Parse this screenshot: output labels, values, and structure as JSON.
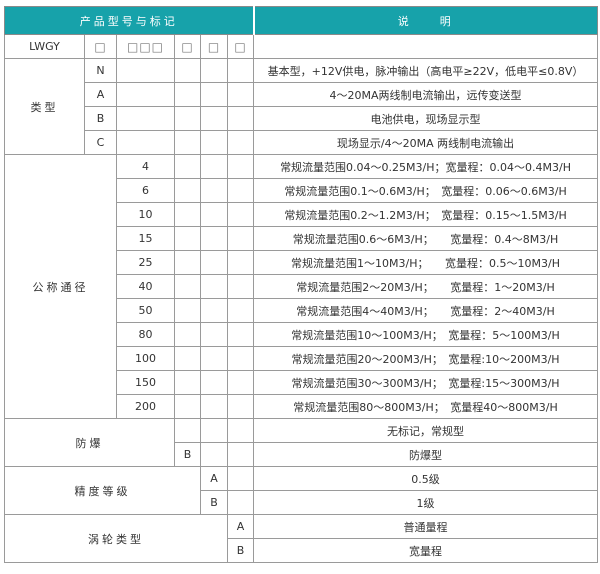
{
  "header": {
    "left": "产品型号与标记",
    "right": "说　　明"
  },
  "model_row": {
    "code": "LWGY",
    "slots": [
      "□",
      "□□□",
      "□",
      "□",
      "□"
    ]
  },
  "type": {
    "label": "类型",
    "items": [
      {
        "code": "N",
        "desc": "基本型，+12V供电，脉冲输出（高电平≥22V，低电平≤0.8V）"
      },
      {
        "code": "A",
        "desc": "4～20MA两线制电流输出，远传变送型"
      },
      {
        "code": "B",
        "desc": "电池供电，现场显示型"
      },
      {
        "code": "C",
        "desc": "现场显示/4～20MA 两线制电流输出"
      }
    ]
  },
  "diameter": {
    "label": "公称通径",
    "items": [
      {
        "code": "4",
        "desc": "常规流量范围0.04～0.25M3/H；宽量程：0.04～0.4M3/H"
      },
      {
        "code": "6",
        "desc": "常规流量范围0.1～0.6M3/H；　宽量程：0.06～0.6M3/H"
      },
      {
        "code": "10",
        "desc": "常规流量范围0.2～1.2M3/H；　宽量程：0.15～1.5M3/H"
      },
      {
        "code": "15",
        "desc": "常规流量范围0.6～6M3/H；　　宽量程：0.4～8M3/H"
      },
      {
        "code": "25",
        "desc": "常规流量范围1～10M3/H；　　宽量程：0.5～10M3/H"
      },
      {
        "code": "40",
        "desc": "常规流量范围2～20M3/H；　　宽量程：1～20M3/H"
      },
      {
        "code": "50",
        "desc": "常规流量范围4～40M3/H；　　宽量程：2～40M3/H"
      },
      {
        "code": "80",
        "desc": "常规流量范围10～100M3/H；　宽量程：5～100M3/H"
      },
      {
        "code": "100",
        "desc": "常规流量范围20～200M3/H；　宽量程:10～200M3/H"
      },
      {
        "code": "150",
        "desc": "常规流量范围30～300M3/H；　宽量程:15～300M3/H"
      },
      {
        "code": "200",
        "desc": "常规流量范围80～800M3/H；　宽量程40～800M3/H"
      }
    ]
  },
  "explosion": {
    "label": "防爆",
    "items": [
      {
        "code": "",
        "desc": "无标记，常规型"
      },
      {
        "code": "B",
        "desc": "防爆型"
      }
    ]
  },
  "accuracy": {
    "label": "精度等级",
    "items": [
      {
        "code": "A",
        "desc": "0.5级"
      },
      {
        "code": "B",
        "desc": "1级"
      }
    ]
  },
  "turbine": {
    "label": "涡轮类型",
    "items": [
      {
        "code": "A",
        "desc": "普通量程"
      },
      {
        "code": "B",
        "desc": "宽量程"
      }
    ]
  },
  "colors": {
    "header_bg": "#17a2aa",
    "border": "#9a9a9a"
  }
}
